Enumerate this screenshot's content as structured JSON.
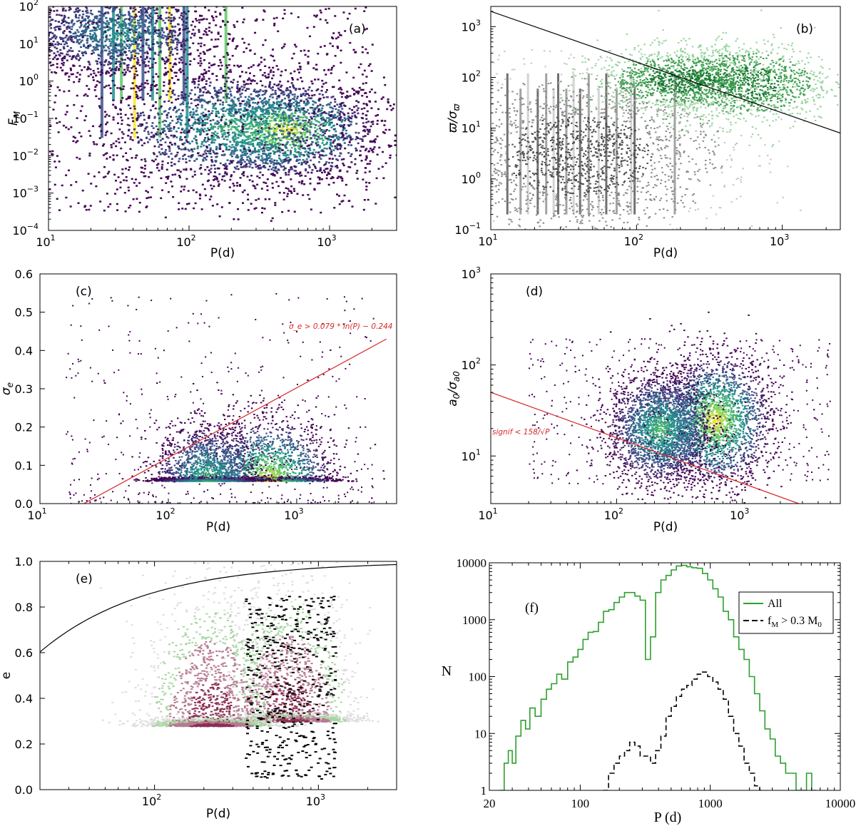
{
  "colors": {
    "viridis": [
      "#440154",
      "#3b528b",
      "#21918c",
      "#5ec962",
      "#fde725"
    ],
    "grey": [
      "#4d4d4d",
      "#8c8c8c",
      "#c8c8c8"
    ],
    "green": "#2ca02c",
    "red": "#d62728",
    "black": "#000000",
    "purple": "#8b2f52"
  },
  "chart_data": [
    {
      "panel_label": "(a)",
      "type": "heatmap",
      "xlabel": "P(d)",
      "ylabel": "F_M",
      "xscale": "log",
      "yscale": "log",
      "xlim": [
        10,
        3000
      ],
      "ylim": [
        0.0001,
        100
      ],
      "x_tick_labels": [
        "10",
        "10",
        "10"
      ],
      "x_tick_exponents": [
        "1",
        "2",
        "3"
      ],
      "y_tick_labels": [
        "10",
        "10",
        "10",
        "10",
        "10",
        "10",
        "10"
      ],
      "y_tick_exponents": [
        "−4",
        "−3",
        "−2",
        "−1",
        "0",
        "1",
        "2"
      ],
      "density": [
        {
          "x": 470,
          "y": 0.05,
          "sx": 0.35,
          "sy": 0.7,
          "w": 1.0
        },
        {
          "x": 200,
          "y": 0.06,
          "sx": 0.45,
          "sy": 0.8,
          "w": 0.7
        },
        {
          "x": 30,
          "y": 20,
          "sx": 0.35,
          "sy": 0.6,
          "w": 0.5
        }
      ],
      "streaks": [
        24,
        29,
        33,
        41,
        47,
        55,
        62,
        73,
        92,
        97,
        183
      ],
      "colormap": "viridis"
    },
    {
      "panel_label": "(b)",
      "type": "heatmap",
      "xlabel": "P(d)",
      "ylabel": "ϖ/σ_ϖ",
      "xscale": "log",
      "yscale": "log",
      "xlim": [
        10,
        2500
      ],
      "ylim": [
        0.1,
        2500
      ],
      "x_tick_labels": [
        "10",
        "10",
        "10"
      ],
      "x_tick_exponents": [
        "1",
        "2",
        "3"
      ],
      "y_tick_labels": [
        "10",
        "10",
        "10",
        "10",
        "10"
      ],
      "y_tick_exponents": [
        "−1",
        "0",
        "1",
        "2",
        "3"
      ],
      "line": {
        "x": [
          10,
          2500
        ],
        "y": [
          2000,
          8
        ]
      },
      "density_grey": [
        {
          "x": 40,
          "y": 3,
          "sx": 0.5,
          "sy": 0.8
        }
      ],
      "density_green": [
        {
          "x": 550,
          "y": 80,
          "sx": 0.3,
          "sy": 0.4
        },
        {
          "x": 200,
          "y": 90,
          "sx": 0.3,
          "sy": 0.3
        }
      ],
      "streaks": [
        13,
        16,
        18,
        21,
        24,
        27,
        29,
        33,
        37,
        41,
        47,
        55,
        62,
        73,
        92,
        97,
        183
      ],
      "colormap": "grey / green"
    },
    {
      "panel_label": "(c)",
      "type": "heatmap",
      "xlabel": "P(d)",
      "ylabel": "σ_e",
      "xscale": "log",
      "yscale": "linear",
      "xlim": [
        10,
        6000
      ],
      "ylim": [
        0,
        0.6
      ],
      "x_tick_labels": [
        "10",
        "10",
        "10"
      ],
      "x_tick_exponents": [
        "1",
        "2",
        "3"
      ],
      "y_ticks": [
        0.0,
        0.1,
        0.2,
        0.3,
        0.4,
        0.5,
        0.6
      ],
      "y_tick_labels": [
        "0.0",
        "0.1",
        "0.2",
        "0.3",
        "0.4",
        "0.5",
        "0.6"
      ],
      "line": {
        "x": [
          22,
          5000
        ],
        "y": [
          0,
          0.43
        ]
      },
      "annotation": "σ_e > 0.079 * ln(P) − 0.244",
      "density": [
        {
          "x": 600,
          "y": 0.06,
          "sx": 0.25,
          "sy": 0.05,
          "w": 1.0
        },
        {
          "x": 200,
          "y": 0.06,
          "sx": 0.2,
          "sy": 0.045,
          "w": 0.7
        }
      ],
      "colormap": "viridis"
    },
    {
      "panel_label": "(d)",
      "type": "heatmap",
      "xlabel": "P(d)",
      "ylabel": "a_0/σ_a0",
      "xscale": "log",
      "yscale": "log",
      "xlim": [
        10,
        6000
      ],
      "ylim": [
        3,
        1000
      ],
      "x_tick_labels": [
        "10",
        "10",
        "10"
      ],
      "x_tick_exponents": [
        "1",
        "2",
        "3"
      ],
      "y_tick_labels": [
        "10",
        "10",
        "10"
      ],
      "y_tick_exponents": [
        "1",
        "2",
        "3"
      ],
      "line": {
        "x": [
          10,
          2800
        ],
        "y": [
          50,
          3
        ]
      },
      "annotation": "signif < 158/√P",
      "density": [
        {
          "x": 600,
          "y": 25,
          "sx": 0.22,
          "sy": 0.35,
          "w": 1.0
        },
        {
          "x": 220,
          "y": 20,
          "sx": 0.2,
          "sy": 0.3,
          "w": 0.7
        }
      ],
      "colormap": "viridis"
    },
    {
      "panel_label": "(e)",
      "type": "heatmap",
      "xlabel": "P(d)",
      "ylabel": "e",
      "xscale": "log",
      "yscale": "linear",
      "xlim": [
        20,
        3000
      ],
      "ylim": [
        0,
        1
      ],
      "x_tick_labels": [
        "10",
        "10"
      ],
      "x_tick_exponents": [
        "2",
        "3"
      ],
      "y_ticks": [
        0.0,
        0.2,
        0.4,
        0.6,
        0.8,
        1.0
      ],
      "y_tick_labels": [
        "0.0",
        "0.2",
        "0.4",
        "0.6",
        "0.8",
        "1.0"
      ],
      "curve": "e_max = 1 − (P / 10)^(-1/3) ... upper envelope",
      "density": [
        {
          "x": 650,
          "y": 0.3,
          "sx": 0.2,
          "sy": 0.18,
          "w": 1.0
        },
        {
          "x": 220,
          "y": 0.28,
          "sx": 0.2,
          "sy": 0.18,
          "w": 0.6
        }
      ],
      "colormap": "purple / green / black"
    },
    {
      "panel_label": "(f)",
      "type": "line",
      "xlabel": "P (d)",
      "ylabel": "N",
      "xscale": "log",
      "yscale": "log",
      "xlim": [
        20,
        10000
      ],
      "ylim": [
        1,
        10000
      ],
      "x_ticks": [
        20,
        100,
        1000,
        10000
      ],
      "x_tick_labels": [
        "20",
        "100",
        "1000",
        "10000"
      ],
      "y_ticks": [
        1,
        10,
        100,
        1000,
        10000
      ],
      "y_tick_labels": [
        "1",
        "10",
        "100",
        "1000",
        "10000"
      ],
      "legend": "top-right",
      "series": [
        {
          "name": "All",
          "style": "solid",
          "color": "#2ca02c",
          "x": [
            24,
            26,
            28,
            30,
            32,
            35,
            38,
            41,
            45,
            50,
            55,
            60,
            66,
            72,
            80,
            88,
            96,
            105,
            115,
            126,
            138,
            151,
            166,
            182,
            200,
            219,
            240,
            263,
            289,
            317,
            347,
            380,
            417,
            457,
            501,
            549,
            602,
            660,
            724,
            794,
            871,
            955,
            1047,
            1148,
            1259,
            1380,
            1514,
            1660,
            1820,
            1995,
            2188,
            2399,
            2630,
            2884,
            3162,
            3467,
            3802,
            4169,
            4571,
            5012,
            5495,
            6026
          ],
          "y": [
            1,
            3,
            5,
            3,
            9,
            17,
            12,
            28,
            20,
            40,
            60,
            75,
            110,
            90,
            180,
            220,
            300,
            450,
            600,
            620,
            900,
            1400,
            1500,
            2000,
            2500,
            3000,
            3000,
            2600,
            2200,
            200,
            500,
            3000,
            5000,
            6000,
            7500,
            8800,
            9000,
            8500,
            8200,
            8000,
            6500,
            5000,
            3500,
            2500,
            1400,
            1000,
            500,
            300,
            200,
            100,
            50,
            25,
            12,
            8,
            4,
            3,
            2,
            2,
            1,
            1,
            2,
            1
          ]
        },
        {
          "name": "f_M > 0.3 M_0",
          "style": "dashed",
          "color": "#000000",
          "x": [
            150,
            165,
            182,
            200,
            219,
            240,
            263,
            289,
            317,
            347,
            380,
            417,
            457,
            501,
            549,
            602,
            660,
            724,
            794,
            871,
            955,
            1047,
            1148,
            1259,
            1380,
            1514,
            1660,
            1820,
            1995,
            2188,
            2399
          ],
          "y": [
            1,
            2,
            3,
            4,
            5,
            7,
            6,
            4,
            4,
            3,
            5,
            9,
            20,
            30,
            45,
            60,
            70,
            90,
            110,
            120,
            100,
            80,
            60,
            40,
            20,
            10,
            6,
            3,
            2,
            1.2,
            1
          ]
        }
      ],
      "legend_entries": [
        "All",
        "f",
        "M",
        " > 0.3 M",
        "0"
      ]
    }
  ]
}
